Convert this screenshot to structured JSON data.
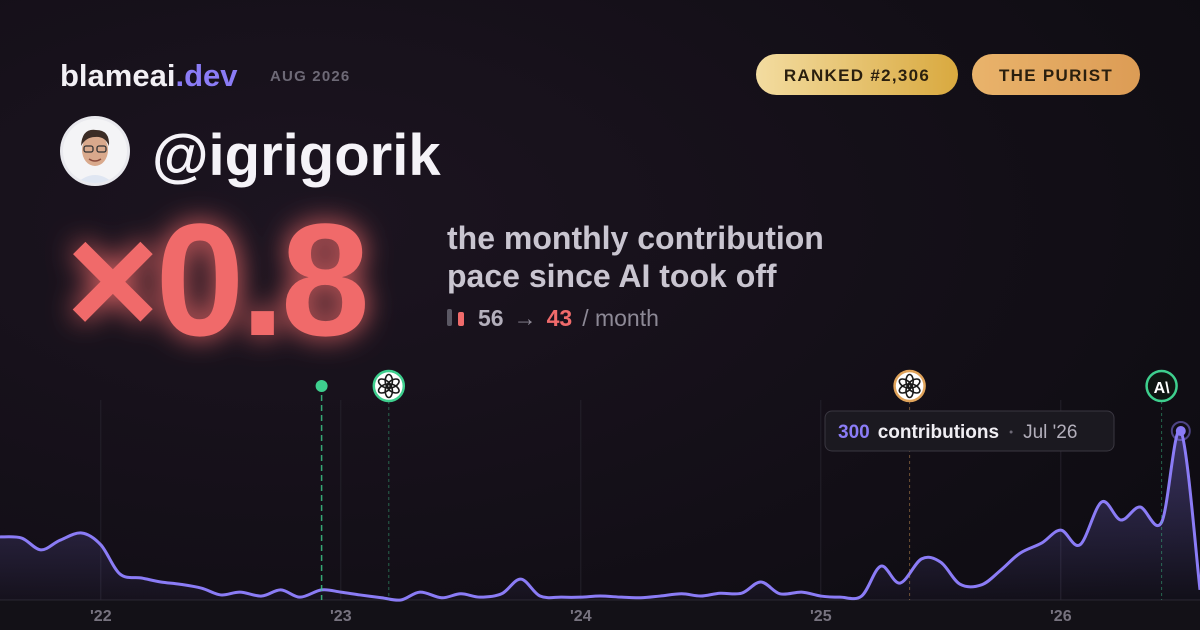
{
  "header": {
    "brand": "blameai",
    "brand_tld": ".dev",
    "date": "AUG 2026",
    "badges": [
      "RANKED #2,306",
      "THE PURIST"
    ]
  },
  "profile": {
    "handle": "@igrigorik"
  },
  "stat": {
    "multiplier": "×0.8",
    "caption": [
      "the monthly contribution",
      "pace since AI took off"
    ],
    "before": 56,
    "arrow": "→",
    "after": 43,
    "unit": "/ month"
  },
  "chart_data": {
    "type": "line",
    "x": [
      2021.58,
      2021.67,
      2021.75,
      2021.83,
      2021.92,
      2022,
      2022.08,
      2022.17,
      2022.25,
      2022.33,
      2022.42,
      2022.5,
      2022.58,
      2022.67,
      2022.75,
      2022.83,
      2022.92,
      2023,
      2023.08,
      2023.17,
      2023.25,
      2023.33,
      2023.42,
      2023.5,
      2023.58,
      2023.67,
      2023.75,
      2023.83,
      2023.92,
      2024,
      2024.08,
      2024.17,
      2024.25,
      2024.33,
      2024.42,
      2024.5,
      2024.58,
      2024.67,
      2024.75,
      2024.83,
      2024.92,
      2025,
      2025.08,
      2025.17,
      2025.25,
      2025.33,
      2025.42,
      2025.5,
      2025.58,
      2025.67,
      2025.75,
      2025.83,
      2025.92,
      2026,
      2026.08,
      2026.17,
      2026.25,
      2026.33,
      2026.42,
      2026.5,
      2026.58
    ],
    "series": [
      {
        "color": "#8b7cf6",
        "values": [
          112,
          110,
          89,
          106,
          119,
          98,
          46,
          39,
          32,
          28,
          21,
          9,
          14,
          7,
          18,
          5,
          18,
          14,
          9,
          4,
          0,
          14,
          4,
          11,
          5,
          11,
          37,
          7,
          5,
          5,
          7,
          5,
          4,
          7,
          11,
          7,
          12,
          12,
          32,
          11,
          14,
          7,
          5,
          7,
          60,
          30,
          73,
          67,
          28,
          27,
          53,
          83,
          101,
          124,
          98,
          174,
          142,
          165,
          138,
          300,
          18
        ]
      }
    ],
    "xlim": [
      2021.58,
      2026.58
    ],
    "ylim": [
      0,
      300
    ],
    "xticks": [
      {
        "value": 2022,
        "label": "'22"
      },
      {
        "value": 2023,
        "label": "'23"
      },
      {
        "value": 2024,
        "label": "'24"
      },
      {
        "value": 2025,
        "label": "'25"
      },
      {
        "value": 2026,
        "label": "'26"
      }
    ],
    "events": [
      {
        "x": 2022.92,
        "icon": "dot",
        "color": "#3ecf8e"
      },
      {
        "x": 2023.2,
        "icon": "openai",
        "color": "#3ecf8e"
      },
      {
        "x": 2025.37,
        "icon": "openai",
        "color": "#e0a35a"
      },
      {
        "x": 2026.42,
        "icon": "text",
        "label": "A\\",
        "color": "#3ecf8e"
      }
    ],
    "tooltip": {
      "index": 59,
      "label": "contributions",
      "date": "Jul '26"
    }
  }
}
